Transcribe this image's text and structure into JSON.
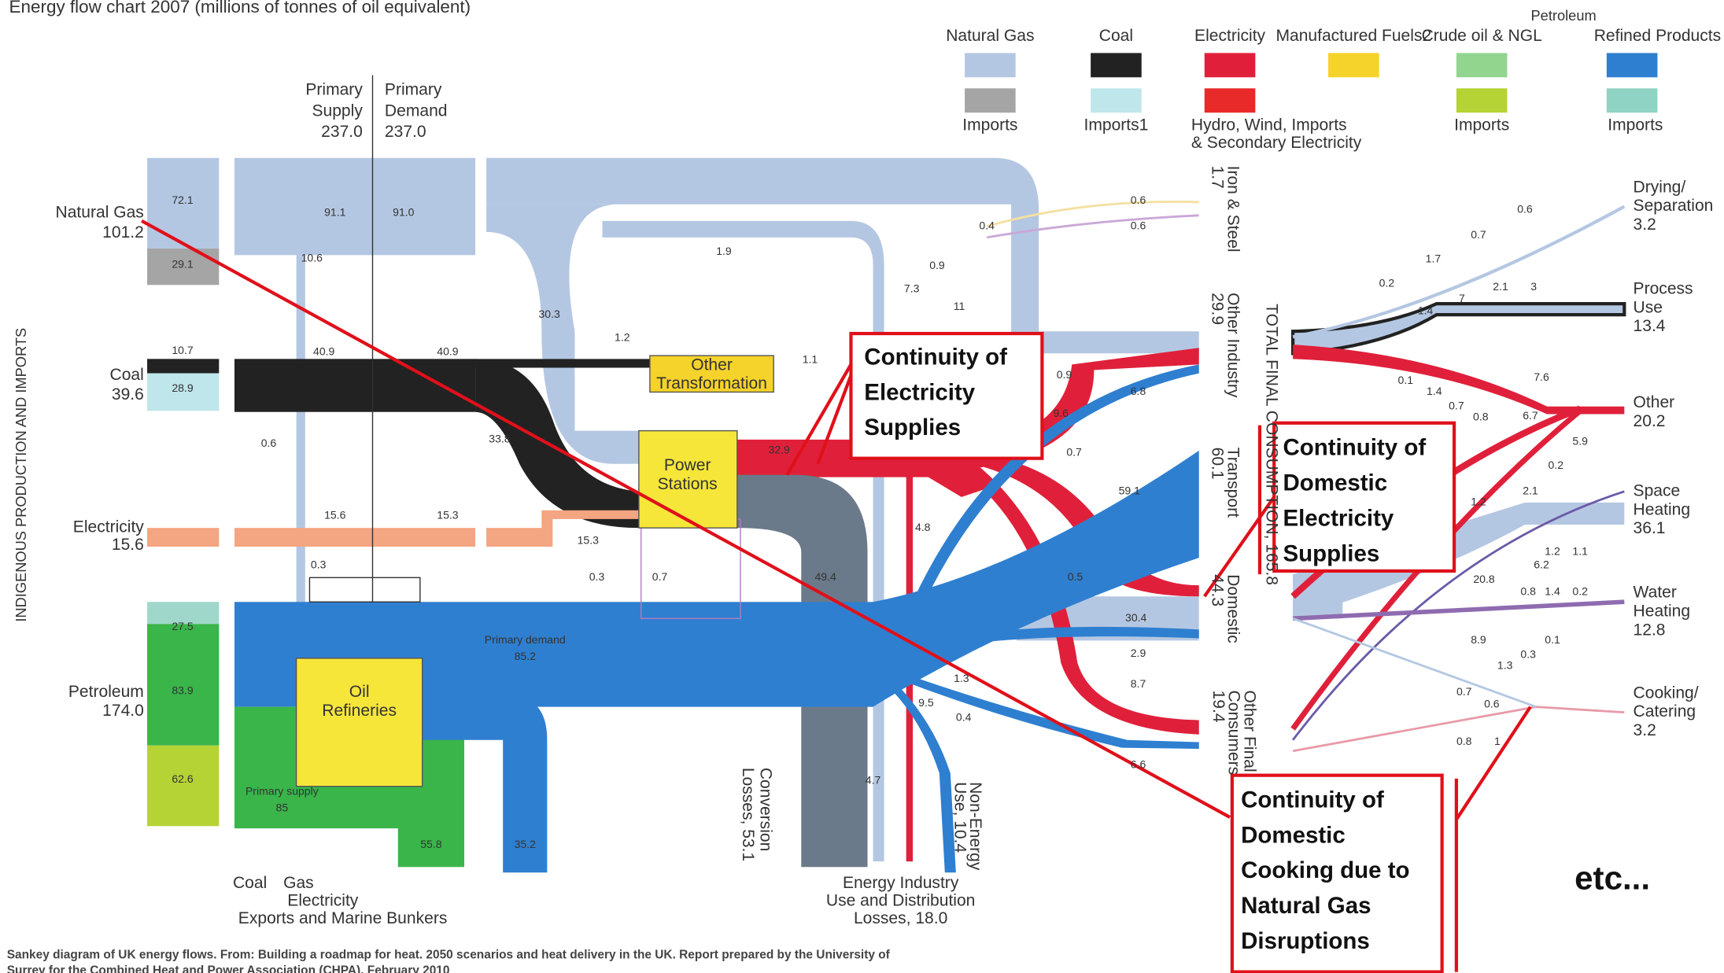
{
  "header": {
    "title": "Energy flow chart 2007 (millions of tonnes of oil equivalent)"
  },
  "legend": {
    "group": "Petroleum",
    "top": [
      "Natural Gas",
      "Coal",
      "Electricity",
      "Manufactured Fuels2",
      "Crude oil & NGL",
      "Refined Products"
    ],
    "bottom": [
      "Imports",
      "Imports1",
      "Hydro, Wind, Imports",
      "& Secondary Electricity",
      "Imports",
      "Imports"
    ]
  },
  "axis_label": "INDIGENOUS PRODUCTION AND IMPORTS",
  "columns": [
    [
      "Primary",
      "Supply",
      "237.0"
    ],
    [
      "Primary",
      "Demand",
      "237.0"
    ]
  ],
  "sources": [
    {
      "name": "Natural Gas",
      "total": "101.2",
      "parts": [
        "72.1",
        "29.1"
      ]
    },
    {
      "name": "Coal",
      "total": "39.6",
      "parts": [
        "10.7",
        "28.9"
      ]
    },
    {
      "name": "Electricity",
      "total": "15.6",
      "parts": []
    },
    {
      "name": "Petroleum",
      "total": "174.0",
      "parts": [
        "27.5",
        "83.9",
        "62.6"
      ]
    }
  ],
  "nodes": [
    [
      "Other",
      "Transformation"
    ],
    [
      "Power",
      "Stations"
    ],
    [
      "Oil",
      "Refineries"
    ]
  ],
  "flow_labels": [
    "91.1",
    "91.0",
    "10.6",
    "1.9",
    "30.3",
    "1.2",
    "40.9",
    "40.9",
    "1.1",
    "0.9",
    "9.6",
    "0.7",
    "6.8",
    "0.6",
    "33.8",
    "32.9",
    "15.6",
    "15.3",
    "15.3",
    "0.3",
    "0.3",
    "0.7",
    "49.4",
    "4.8",
    "59.1",
    "0.5",
    "30.4",
    "2.9",
    "8.7",
    "1.3",
    "9.5",
    "0.4",
    "4.7",
    "0.6",
    "0.6",
    "0.4",
    "0.9",
    "7.3",
    "11",
    "Primary demand",
    "85.2",
    "Primary supply",
    "85",
    "55.8",
    "35.2",
    "6.6",
    "0.6",
    "0.7",
    "1.7",
    "0.2",
    "7",
    "1.4",
    "2.1",
    "3",
    "7.6",
    "0.1",
    "1.4",
    "0.7",
    "0.8",
    "6.7",
    "5.9",
    "0.2",
    "1.2",
    "2.1",
    "1.2",
    "1.1",
    "6.2",
    "20.8",
    "0.8",
    "1.4",
    "0.2",
    "8.9",
    "0.1",
    "1.3",
    "0.3",
    "0.7",
    "0.6",
    "0.8",
    "1"
  ],
  "sectors": [
    [
      "Iron & Steel",
      "1.7"
    ],
    [
      "Other Industry",
      "29.9"
    ],
    [
      "Transport",
      "60.1"
    ],
    [
      "Domestic",
      "44.3"
    ],
    [
      "Other Final",
      "Consumers",
      "19.4"
    ]
  ],
  "total": "TOTAL FINAL CONSUMPTION, 165.8",
  "end_uses": [
    [
      "Drying/",
      "Separation",
      "3.2"
    ],
    [
      "Process",
      "Use",
      "13.4"
    ],
    [
      "Other",
      "20.2"
    ],
    [
      "Space",
      "Heating",
      "36.1"
    ],
    [
      "Water",
      "Heating",
      "12.8"
    ],
    [
      "Cooking/",
      "Catering",
      "3.2"
    ]
  ],
  "bottom": {
    "conversion": [
      "Conversion",
      "Losses, 53.1"
    ],
    "non_energy": [
      "Non-Energy",
      "Use, 10.4"
    ],
    "industry": [
      "Energy Industry",
      "Use and Distribution",
      "Losses, 18.0"
    ],
    "exports": [
      "Coal",
      "Gas",
      "Electricity",
      "Exports and Marine Bunkers"
    ]
  },
  "callouts": [
    [
      "Continuity of",
      "Electricity",
      "Supplies"
    ],
    [
      "Continuity of",
      "Domestic",
      "Electricity",
      "Supplies"
    ],
    [
      "Continuity of",
      "Domestic",
      "Cooking due to",
      "Natural Gas",
      "Disruptions"
    ]
  ],
  "etc": "etc...",
  "caption": [
    "Sankey diagram of UK energy flows. From: Building a roadmap for heat. 2050 scenarios and heat delivery in the UK. Report prepared by the University of",
    "Surrey for the Combined Heat and Power Association (CHPA), February 2010"
  ]
}
